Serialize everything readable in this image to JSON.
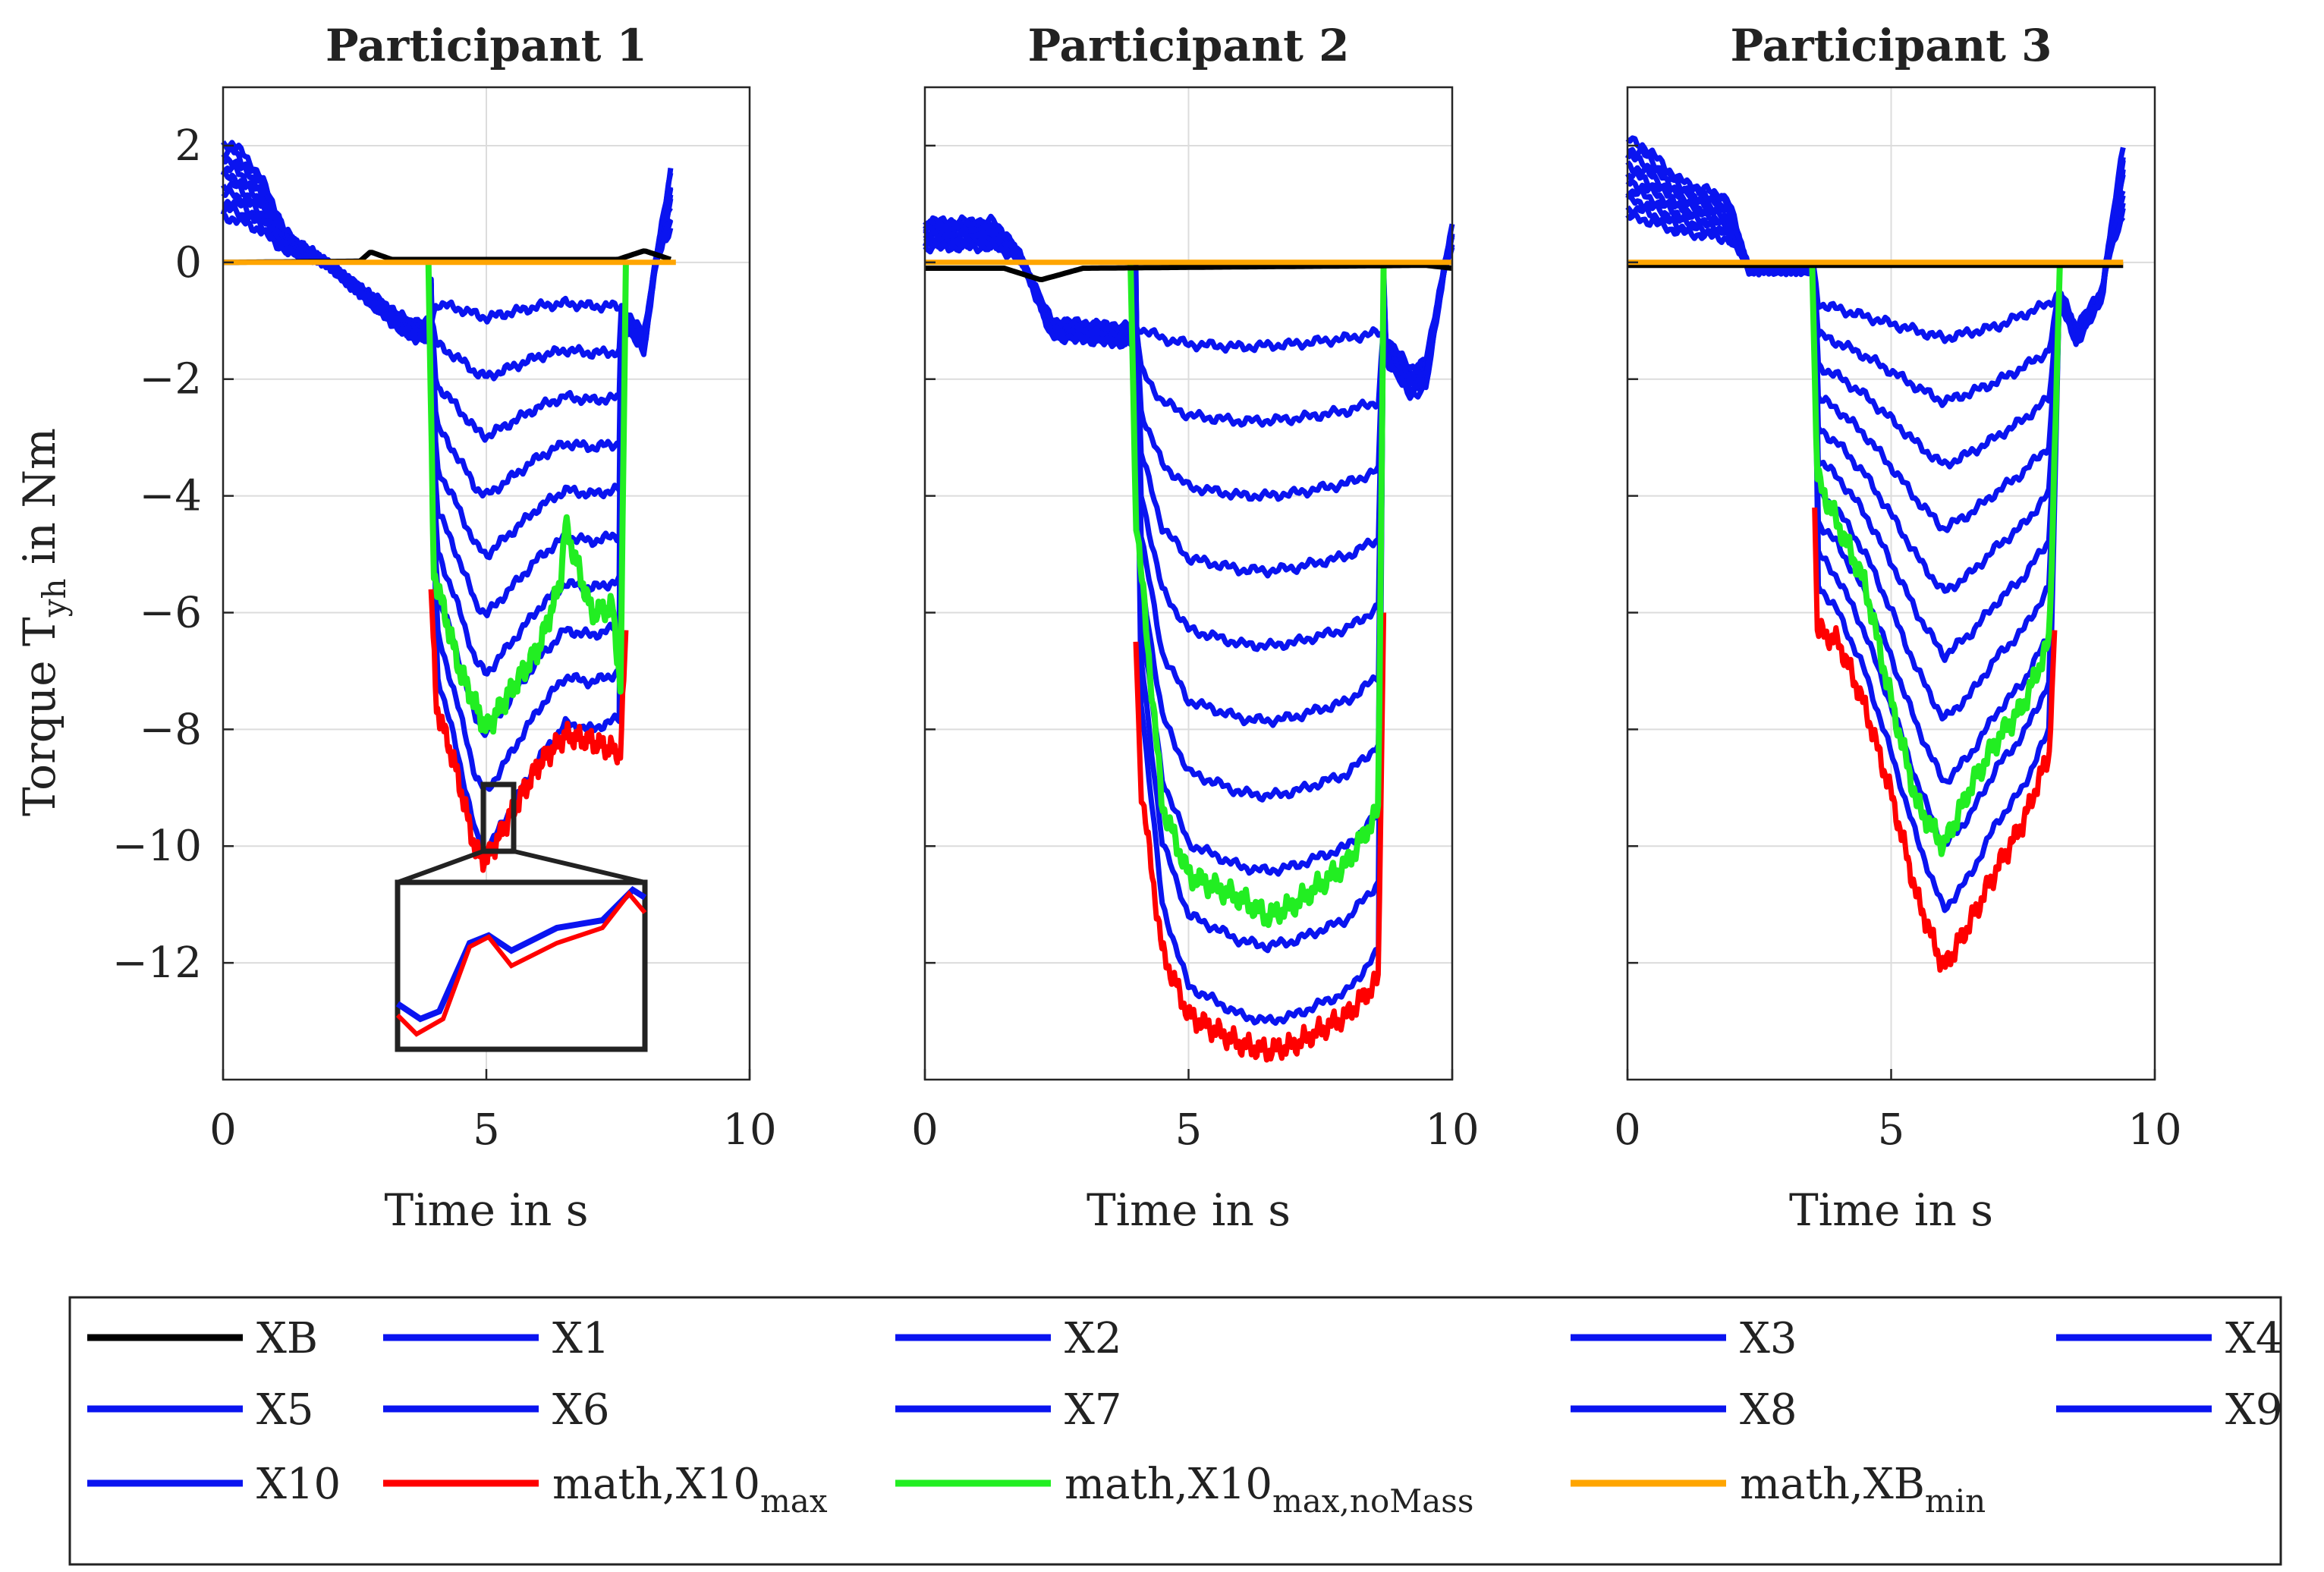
{
  "figure": {
    "ylabel_main": "Torque T",
    "ylabel_sub": "yh",
    "ylabel_unit": " in Nm"
  },
  "chart_data": [
    {
      "type": "line",
      "title": "Participant 1",
      "xlabel": "Time in s",
      "ylabel": "Torque T_yh in Nm",
      "xlim": [
        0,
        10
      ],
      "ylim": [
        -14,
        3
      ],
      "xticks": [
        0,
        5,
        10
      ],
      "yticks": [
        -12,
        -10,
        -8,
        -6,
        -4,
        -2,
        0,
        2
      ],
      "grid": true,
      "inset_zoom": true,
      "series": [
        {
          "name": "XB",
          "color": "#000000",
          "x": [
            0,
            2.6,
            2.8,
            3.2,
            7.5,
            8.0,
            8.5
          ],
          "y": [
            0,
            0.02,
            0.18,
            0.05,
            0.05,
            0.2,
            0.05
          ]
        },
        {
          "name": "X1",
          "color": "#0a14f0",
          "x": [
            0,
            0.2,
            0.7,
            1.2,
            2.4,
            3.5,
            3.95,
            4.05,
            4.5,
            5.0,
            5.5,
            6.0,
            6.5,
            7.0,
            7.55,
            7.65,
            8.0,
            8.5
          ],
          "y": [
            2.0,
            2.05,
            1.5,
            0.5,
            -0.3,
            -1.0,
            -1.05,
            -0.7,
            -0.8,
            -0.95,
            -0.85,
            -0.75,
            -0.7,
            -0.75,
            -0.75,
            -0.9,
            -1.2,
            1.6
          ]
        },
        {
          "name": "X10",
          "color": "#0a14f0",
          "x": [
            3.95,
            4.05,
            4.4,
            4.8,
            5.0,
            5.5,
            6.0,
            6.5,
            7.0,
            7.55
          ],
          "y": [
            -0.1,
            -7.0,
            -8.2,
            -9.8,
            -10.1,
            -9.3,
            -8.5,
            -7.9,
            -8.0,
            -7.8
          ]
        },
        {
          "name": "math,X10_max",
          "color": "#ff0000",
          "x": [
            3.95,
            4.05,
            4.4,
            4.8,
            5.0,
            5.5,
            6.0,
            6.5,
            7.0,
            7.55,
            7.65
          ],
          "y": [
            -5.6,
            -7.6,
            -8.6,
            -10.1,
            -10.25,
            -9.4,
            -8.6,
            -8.1,
            -8.2,
            -8.4,
            -6.3
          ]
        },
        {
          "name": "math,X10_max,noMass",
          "color": "#22ee22",
          "x": [
            3.9,
            4.0,
            4.5,
            5.0,
            5.5,
            6.0,
            6.4,
            6.5,
            7.0,
            7.4,
            7.55,
            7.65
          ],
          "y": [
            0,
            -5.3,
            -7.0,
            -8.0,
            -7.3,
            -6.6,
            -5.5,
            -4.5,
            -6.0,
            -5.9,
            -7.3,
            0
          ]
        },
        {
          "name": "math,XB_min",
          "color": "#ffa500",
          "x": [
            0,
            8.6
          ],
          "y": [
            0,
            0
          ]
        }
      ]
    },
    {
      "type": "line",
      "title": "Participant 2",
      "xlabel": "Time in s",
      "xlim": [
        0,
        10
      ],
      "ylim": [
        -14,
        3
      ],
      "xticks": [
        0,
        5,
        10
      ],
      "grid": true,
      "series": [
        {
          "name": "XB",
          "color": "#000000",
          "x": [
            0,
            1.5,
            2.2,
            3.0,
            9.5,
            10.0
          ],
          "y": [
            -0.1,
            -0.1,
            -0.3,
            -0.1,
            -0.05,
            -0.1
          ]
        },
        {
          "name": "X1",
          "color": "#0a14f0",
          "x": [
            0,
            1.3,
            1.7,
            2.4,
            3.8,
            4.0,
            4.5,
            5.0,
            6.0,
            7.0,
            8.0,
            8.65,
            9.2,
            9.5,
            10.0
          ],
          "y": [
            0.7,
            0.7,
            0.3,
            -1.0,
            -1.1,
            -1.1,
            -1.3,
            -1.4,
            -1.45,
            -1.4,
            -1.3,
            -1.2,
            -1.8,
            -1.7,
            0.6
          ]
        },
        {
          "name": "X10",
          "color": "#0a14f0",
          "x": [
            4.0,
            4.1,
            4.5,
            5.0,
            6.0,
            6.5,
            7.0,
            8.0,
            8.6,
            8.7
          ],
          "y": [
            -0.1,
            -7.5,
            -11.0,
            -12.4,
            -12.9,
            -13.0,
            -12.9,
            -12.5,
            -11.8,
            -0.1
          ]
        },
        {
          "name": "math,X10_max",
          "color": "#ff0000",
          "x": [
            4.0,
            4.1,
            4.5,
            5.0,
            6.0,
            6.5,
            7.0,
            8.0,
            8.6,
            8.7
          ],
          "y": [
            -6.5,
            -9.0,
            -11.8,
            -12.9,
            -13.4,
            -13.5,
            -13.4,
            -12.9,
            -12.3,
            -6.0
          ]
        },
        {
          "name": "math,X10_max,noMass",
          "color": "#22ee22",
          "x": [
            3.9,
            4.0,
            4.5,
            5.0,
            6.0,
            6.5,
            7.0,
            8.0,
            8.6,
            8.7
          ],
          "y": [
            0,
            -4.3,
            -9.3,
            -10.5,
            -10.9,
            -11.2,
            -11.0,
            -10.3,
            -9.4,
            0
          ]
        },
        {
          "name": "math,XB_min",
          "color": "#ffa500",
          "x": [
            0,
            10.0
          ],
          "y": [
            0,
            0
          ]
        }
      ]
    },
    {
      "type": "line",
      "title": "Participant 3",
      "xlabel": "Time in s",
      "xlim": [
        0,
        10
      ],
      "ylim": [
        -14,
        3
      ],
      "xticks": [
        0,
        5,
        10
      ],
      "grid": true,
      "series": [
        {
          "name": "XB",
          "color": "#000000",
          "x": [
            0,
            9.4
          ],
          "y": [
            -0.05,
            -0.05
          ]
        },
        {
          "name": "X1",
          "color": "#0a14f0",
          "x": [
            0,
            0.3,
            1.0,
            1.9,
            2.3,
            3.0,
            3.55,
            3.6,
            4.0,
            5.0,
            6.0,
            7.0,
            8.0,
            8.2,
            8.5,
            9.0,
            9.4
          ],
          "y": [
            2.1,
            2.0,
            1.4,
            1.1,
            -0.1,
            -0.1,
            -0.1,
            -0.7,
            -0.8,
            -1.05,
            -1.3,
            -1.1,
            -0.7,
            -0.5,
            -1.1,
            -0.5,
            2.0
          ]
        },
        {
          "name": "X10",
          "color": "#0a14f0",
          "x": [
            3.55,
            3.6,
            4.0,
            4.5,
            5.0,
            5.5,
            6.0,
            6.5,
            7.0,
            7.5,
            8.0,
            8.2
          ],
          "y": [
            -0.1,
            -5.5,
            -6.0,
            -7.0,
            -8.4,
            -9.9,
            -11.1,
            -10.5,
            -9.6,
            -9.0,
            -8.0,
            -0.1
          ]
        },
        {
          "name": "math,X10_max",
          "color": "#ff0000",
          "x": [
            3.55,
            3.6,
            4.0,
            4.5,
            5.0,
            5.5,
            6.0,
            6.5,
            7.0,
            7.5,
            8.0,
            8.1
          ],
          "y": [
            -4.2,
            -6.3,
            -6.5,
            -7.6,
            -9.1,
            -10.9,
            -12.1,
            -11.3,
            -10.4,
            -9.6,
            -8.4,
            -6.3
          ]
        },
        {
          "name": "math,X10_max,noMass",
          "color": "#22ee22",
          "x": [
            3.5,
            3.6,
            4.0,
            4.5,
            5.0,
            5.5,
            6.0,
            6.5,
            7.0,
            7.5,
            8.0,
            8.2
          ],
          "y": [
            0,
            -3.7,
            -4.5,
            -5.5,
            -7.5,
            -9.3,
            -10.0,
            -9.0,
            -8.2,
            -7.6,
            -6.5,
            0
          ]
        },
        {
          "name": "math,XB_min",
          "color": "#ffa500",
          "x": [
            0,
            9.4
          ],
          "y": [
            0,
            0
          ]
        }
      ]
    }
  ],
  "legend": {
    "position": "bottom",
    "entries": [
      {
        "name": "XB",
        "label": "XB",
        "color": "#000000"
      },
      {
        "name": "X1",
        "label": "X1",
        "color": "#0a14f0"
      },
      {
        "name": "X2",
        "label": "X2",
        "color": "#0a14f0"
      },
      {
        "name": "X3",
        "label": "X3",
        "color": "#0a14f0"
      },
      {
        "name": "X4",
        "label": "X4",
        "color": "#0a14f0"
      },
      {
        "name": "X5",
        "label": "X5",
        "color": "#0a14f0"
      },
      {
        "name": "X6",
        "label": "X6",
        "color": "#0a14f0"
      },
      {
        "name": "X7",
        "label": "X7",
        "color": "#0a14f0"
      },
      {
        "name": "X8",
        "label": "X8",
        "color": "#0a14f0"
      },
      {
        "name": "X9",
        "label": "X9",
        "color": "#0a14f0"
      },
      {
        "name": "X10",
        "label": "X10",
        "color": "#0a14f0"
      },
      {
        "name": "math-x10-max",
        "label": "math,X10",
        "sub": "max",
        "color": "#ff0000"
      },
      {
        "name": "math-x10-max-nomass",
        "label": "math,X10",
        "sub": "max,noMass",
        "color": "#22ee22"
      },
      {
        "name": "math-xb-min",
        "label": "math,XB",
        "sub": "min",
        "color": "#ffa500"
      }
    ]
  }
}
